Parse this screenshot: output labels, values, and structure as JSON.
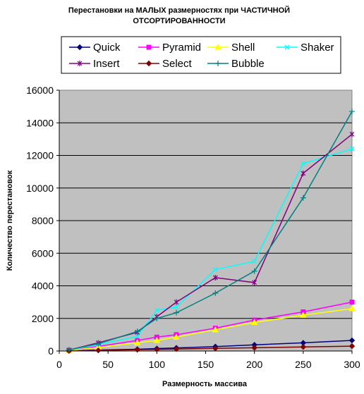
{
  "chart_data": {
    "type": "line",
    "title_lines": [
      "Перестановки на МАЛЫХ размерностях при ЧАСТИЧНОЙ",
      "ОТСОРТИРОВАННОСТИ"
    ],
    "xlabel": "Размерность массива",
    "ylabel": "Количество перестановок",
    "xlim": [
      0,
      300
    ],
    "ylim": [
      0,
      16000
    ],
    "x_ticks": [
      "0",
      "50",
      "100",
      "150",
      "200",
      "250",
      "300"
    ],
    "y_ticks": [
      "0",
      "2000",
      "4000",
      "6000",
      "8000",
      "10000",
      "12000",
      "14000",
      "16000"
    ],
    "grid": "horizontal",
    "plot_background": "#c0c0c0",
    "legend_position": "top",
    "x": [
      10,
      40,
      80,
      100,
      120,
      160,
      200,
      250,
      300
    ],
    "series": [
      {
        "name": "Quick",
        "color": "#000080",
        "marker": "diamond",
        "values": [
          20,
          60,
          110,
          150,
          190,
          270,
          380,
          500,
          650
        ]
      },
      {
        "name": "Pyramid",
        "color": "#ff00ff",
        "marker": "square",
        "values": [
          40,
          280,
          650,
          850,
          1000,
          1400,
          1900,
          2400,
          3000
        ]
      },
      {
        "name": "Shell",
        "color": "#ffff00",
        "marker": "triangle",
        "values": [
          30,
          220,
          500,
          650,
          850,
          1300,
          1750,
          2200,
          2600
        ]
      },
      {
        "name": "Shaker",
        "color": "#00ffff",
        "marker": "x",
        "values": [
          50,
          400,
          900,
          2500,
          2700,
          5000,
          5500,
          11500,
          12400
        ]
      },
      {
        "name": "Insert",
        "color": "#800080",
        "marker": "star",
        "values": [
          60,
          500,
          1150,
          2100,
          3000,
          4500,
          4200,
          10900,
          13300
        ]
      },
      {
        "name": "Select",
        "color": "#800000",
        "marker": "diamond",
        "values": [
          10,
          40,
          80,
          100,
          120,
          160,
          200,
          250,
          300
        ]
      },
      {
        "name": "Bubble",
        "color": "#008080",
        "marker": "plus",
        "values": [
          70,
          450,
          1200,
          2000,
          2350,
          3550,
          4900,
          9400,
          14700
        ]
      }
    ]
  }
}
